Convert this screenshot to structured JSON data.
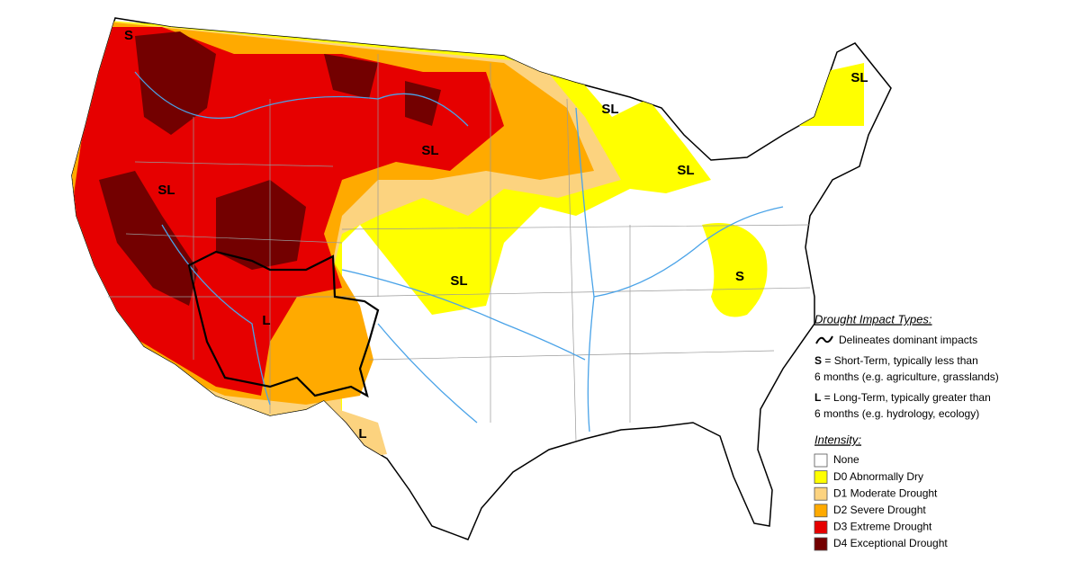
{
  "map_labels": [
    "S",
    "SL",
    "SL",
    "SL",
    "SL",
    "SL",
    "SL",
    "S",
    "L",
    "L"
  ],
  "legend": {
    "impact_title": "Drought Impact Types:",
    "delineates": "Delineates dominant impacts",
    "short_key": "S",
    "short_text": "= Short-Term, typically less than",
    "short_text2": "6 months (e.g. agriculture, grasslands)",
    "long_key": "L",
    "long_text": "= Long-Term, typically greater than",
    "long_text2": "6 months (e.g. hydrology, ecology)",
    "intensity_title": "Intensity:",
    "items": [
      {
        "label": "None",
        "color": "#ffffff"
      },
      {
        "label": "D0 Abnormally Dry",
        "color": "#ffff00"
      },
      {
        "label": "D1 Moderate Drought",
        "color": "#fcd37f"
      },
      {
        "label": "D2 Severe Drought",
        "color": "#ffaa00"
      },
      {
        "label": "D3 Extreme Drought",
        "color": "#e60000"
      },
      {
        "label": "D4 Exceptional Drought",
        "color": "#730000"
      }
    ]
  }
}
